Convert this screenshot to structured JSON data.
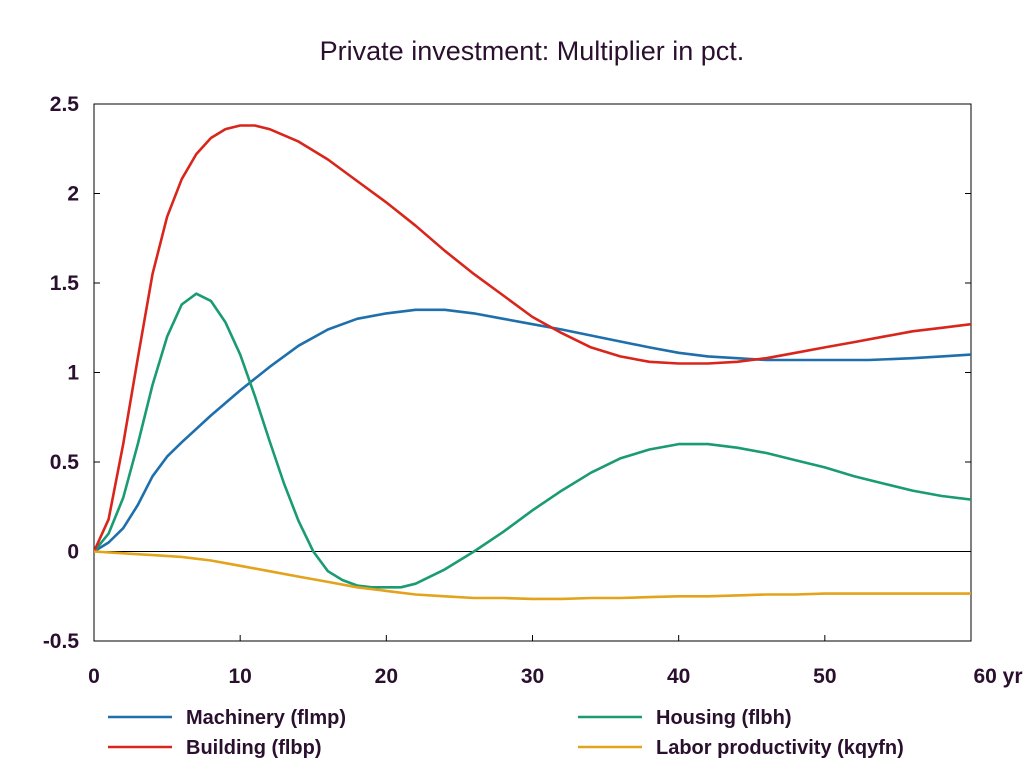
{
  "chart_data": {
    "type": "line",
    "title": "Private investment: Multiplier in pct.",
    "xlabel": "",
    "ylabel": "",
    "xlim": [
      0,
      60
    ],
    "ylim": [
      -0.5,
      2.5
    ],
    "x_ticks": [
      0,
      10,
      20,
      30,
      40,
      50,
      60
    ],
    "x_tick_labels": [
      "0",
      "10",
      "20",
      "30",
      "40",
      "50",
      "60 yr"
    ],
    "y_ticks": [
      -0.5,
      0,
      0.5,
      1,
      1.5,
      2,
      2.5
    ],
    "y_tick_labels": [
      "-0.5",
      "0",
      "0.5",
      "1",
      "1.5",
      "2",
      "2.5"
    ],
    "grid": false,
    "zero_line": true,
    "legend_position": "bottom",
    "series": [
      {
        "name": "Machinery (flmp)",
        "color": "#1f6fad",
        "x": [
          0,
          1,
          2,
          3,
          4,
          5,
          6,
          8,
          10,
          12,
          14,
          16,
          18,
          20,
          22,
          24,
          26,
          28,
          30,
          32,
          35,
          38,
          40,
          42,
          44,
          46,
          48,
          50,
          53,
          56,
          58,
          60
        ],
        "y": [
          0,
          0.05,
          0.13,
          0.26,
          0.42,
          0.53,
          0.61,
          0.76,
          0.9,
          1.03,
          1.15,
          1.24,
          1.3,
          1.33,
          1.35,
          1.35,
          1.33,
          1.3,
          1.27,
          1.24,
          1.19,
          1.14,
          1.11,
          1.09,
          1.08,
          1.07,
          1.07,
          1.07,
          1.07,
          1.08,
          1.09,
          1.1
        ]
      },
      {
        "name": "Housing (flbh)",
        "color": "#1a9b73",
        "x": [
          0,
          1,
          2,
          3,
          4,
          5,
          6,
          7,
          8,
          9,
          10,
          11,
          12,
          13,
          14,
          15,
          16,
          17,
          18,
          19,
          20,
          21,
          22,
          24,
          26,
          28,
          30,
          32,
          34,
          36,
          38,
          40,
          42,
          44,
          46,
          48,
          50,
          52,
          54,
          56,
          58,
          60
        ],
        "y": [
          0,
          0.1,
          0.3,
          0.6,
          0.93,
          1.2,
          1.38,
          1.44,
          1.4,
          1.28,
          1.1,
          0.87,
          0.62,
          0.38,
          0.17,
          0.0,
          -0.11,
          -0.16,
          -0.19,
          -0.2,
          -0.2,
          -0.2,
          -0.18,
          -0.1,
          0.0,
          0.11,
          0.23,
          0.34,
          0.44,
          0.52,
          0.57,
          0.6,
          0.6,
          0.58,
          0.55,
          0.51,
          0.47,
          0.42,
          0.38,
          0.34,
          0.31,
          0.29
        ]
      },
      {
        "name": "Building (flbp)",
        "color": "#d9261c",
        "x": [
          0,
          1,
          2,
          3,
          4,
          5,
          6,
          7,
          8,
          9,
          10,
          11,
          12,
          14,
          16,
          18,
          20,
          22,
          24,
          26,
          28,
          30,
          32,
          34,
          36,
          38,
          40,
          42,
          44,
          46,
          48,
          50,
          52,
          54,
          56,
          58,
          60
        ],
        "y": [
          0,
          0.18,
          0.6,
          1.08,
          1.55,
          1.87,
          2.08,
          2.22,
          2.31,
          2.36,
          2.38,
          2.38,
          2.36,
          2.29,
          2.19,
          2.07,
          1.95,
          1.82,
          1.68,
          1.55,
          1.43,
          1.31,
          1.22,
          1.14,
          1.09,
          1.06,
          1.05,
          1.05,
          1.06,
          1.08,
          1.11,
          1.14,
          1.17,
          1.2,
          1.23,
          1.25,
          1.27
        ]
      },
      {
        "name": "Labor productivity (kqyfn)",
        "color": "#e3a31a",
        "x": [
          0,
          2,
          4,
          6,
          8,
          10,
          12,
          14,
          16,
          18,
          20,
          22,
          24,
          26,
          28,
          30,
          32,
          34,
          36,
          38,
          40,
          42,
          44,
          46,
          48,
          50,
          52,
          54,
          56,
          58,
          60
        ],
        "y": [
          0,
          -0.01,
          -0.02,
          -0.03,
          -0.05,
          -0.08,
          -0.11,
          -0.14,
          -0.17,
          -0.2,
          -0.22,
          -0.24,
          -0.25,
          -0.26,
          -0.26,
          -0.265,
          -0.265,
          -0.26,
          -0.26,
          -0.255,
          -0.25,
          -0.25,
          -0.245,
          -0.24,
          -0.24,
          -0.235,
          -0.235,
          -0.235,
          -0.235,
          -0.235,
          -0.235
        ]
      }
    ],
    "legend_order": [
      "Machinery (flmp)",
      "Housing (flbh)",
      "Building (flbp)",
      "Labor productivity (kqyfn)"
    ]
  }
}
